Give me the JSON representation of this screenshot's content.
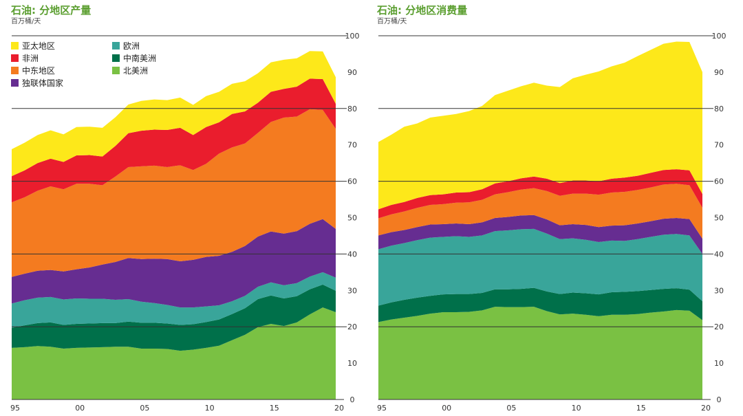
{
  "colors": {
    "asia_pacific": "#fde81a",
    "africa": "#ea1d2d",
    "middle_east": "#f47b20",
    "cis": "#662d91",
    "europe": "#39a59a",
    "south_central_america": "#00704a",
    "north_america": "#7ac143",
    "title": "#5a9e2f",
    "grid": "#333333"
  },
  "legend": [
    {
      "key": "asia_pacific",
      "label": "亚太地区"
    },
    {
      "key": "africa",
      "label": "非洲"
    },
    {
      "key": "middle_east",
      "label": "中东地区"
    },
    {
      "key": "cis",
      "label": "独联体国家"
    },
    {
      "key": "europe",
      "label": "欧洲"
    },
    {
      "key": "south_central_america",
      "label": "中南美洲"
    },
    {
      "key": "north_america",
      "label": "北美洲"
    }
  ],
  "chart_data": [
    {
      "type": "area",
      "stacked": true,
      "title": "石油: 分地区产量",
      "ylabel": "百万桶/天",
      "ylim": [
        0,
        100
      ],
      "yticks": [
        0,
        10,
        20,
        30,
        40,
        50,
        60,
        70,
        80,
        90,
        100
      ],
      "x": [
        1995,
        1996,
        1997,
        1998,
        1999,
        2000,
        2001,
        2002,
        2003,
        2004,
        2005,
        2006,
        2007,
        2008,
        2009,
        2010,
        2011,
        2012,
        2013,
        2014,
        2015,
        2016,
        2017,
        2018,
        2019,
        2020
      ],
      "xticks": [
        {
          "x": 1995,
          "label": "95"
        },
        {
          "x": 2000,
          "label": "00"
        },
        {
          "x": 2005,
          "label": "05"
        },
        {
          "x": 2010,
          "label": "10"
        },
        {
          "x": 2015,
          "label": "15"
        },
        {
          "x": 2020,
          "label": "20"
        }
      ],
      "series": [
        {
          "name": "北美洲",
          "key": "north_america",
          "values": [
            14.2,
            14.4,
            14.7,
            14.5,
            14.0,
            14.2,
            14.3,
            14.4,
            14.5,
            14.5,
            14.0,
            14.0,
            13.9,
            13.4,
            13.7,
            14.2,
            14.8,
            16.3,
            17.8,
            19.9,
            20.8,
            20.2,
            21.2,
            23.4,
            25.3,
            24.0
          ]
        },
        {
          "name": "中南美洲",
          "key": "south_central_america",
          "values": [
            5.5,
            6.0,
            6.3,
            6.7,
            6.5,
            6.6,
            6.6,
            6.6,
            6.5,
            6.9,
            7.1,
            7.1,
            7.0,
            7.1,
            7.0,
            7.1,
            7.2,
            7.2,
            7.3,
            7.7,
            7.8,
            7.6,
            7.2,
            6.9,
            6.3,
            5.9
          ]
        },
        {
          "name": "欧洲",
          "key": "europe",
          "values": [
            6.7,
            6.9,
            7.0,
            7.0,
            7.0,
            7.0,
            6.8,
            6.7,
            6.4,
            6.2,
            5.8,
            5.4,
            5.1,
            4.8,
            4.6,
            4.3,
            3.9,
            3.5,
            3.4,
            3.4,
            3.6,
            3.6,
            3.6,
            3.5,
            3.4,
            3.6
          ]
        },
        {
          "name": "独联体国家",
          "key": "cis",
          "values": [
            7.3,
            7.3,
            7.4,
            7.4,
            7.7,
            8.0,
            8.6,
            9.4,
            10.4,
            11.3,
            11.7,
            12.2,
            12.6,
            12.7,
            13.1,
            13.6,
            13.6,
            13.6,
            13.7,
            13.8,
            14.0,
            14.2,
            14.3,
            14.5,
            14.6,
            13.4
          ]
        },
        {
          "name": "中东地区",
          "key": "middle_east",
          "values": [
            20.5,
            21.0,
            22.0,
            23.0,
            22.6,
            23.5,
            23.0,
            21.8,
            23.5,
            25.0,
            25.5,
            25.6,
            25.3,
            26.4,
            24.7,
            25.6,
            28.1,
            28.7,
            28.2,
            28.5,
            30.1,
            31.9,
            31.5,
            31.5,
            30.0,
            27.5
          ]
        },
        {
          "name": "非洲",
          "key": "africa",
          "values": [
            7.2,
            7.4,
            7.6,
            7.6,
            7.5,
            7.8,
            7.9,
            7.9,
            8.4,
            9.3,
            9.8,
            9.9,
            10.2,
            10.3,
            9.6,
            10.1,
            8.6,
            9.2,
            8.8,
            8.3,
            8.3,
            7.9,
            8.2,
            8.4,
            8.5,
            6.9
          ]
        },
        {
          "name": "亚太地区",
          "key": "asia_pacific",
          "values": [
            7.4,
            7.6,
            7.7,
            7.8,
            7.6,
            7.8,
            7.8,
            7.9,
            7.9,
            7.9,
            8.2,
            8.3,
            8.2,
            8.3,
            8.3,
            8.5,
            8.4,
            8.3,
            8.3,
            8.1,
            8.1,
            8.0,
            7.8,
            7.6,
            7.6,
            7.3
          ]
        }
      ]
    },
    {
      "type": "area",
      "stacked": true,
      "title": "石油: 分地区消费量",
      "ylabel": "百万桶/天",
      "ylim": [
        0,
        100
      ],
      "yticks": [
        0,
        10,
        20,
        30,
        40,
        50,
        60,
        70,
        80,
        90,
        100
      ],
      "x": [
        1995,
        1996,
        1997,
        1998,
        1999,
        2000,
        2001,
        2002,
        2003,
        2004,
        2005,
        2006,
        2007,
        2008,
        2009,
        2010,
        2011,
        2012,
        2013,
        2014,
        2015,
        2016,
        2017,
        2018,
        2019,
        2020
      ],
      "xticks": [
        {
          "x": 1995,
          "label": "95"
        },
        {
          "x": 2000,
          "label": "00"
        },
        {
          "x": 2005,
          "label": "05"
        },
        {
          "x": 2010,
          "label": "10"
        },
        {
          "x": 2015,
          "label": "15"
        },
        {
          "x": 2020,
          "label": "20"
        }
      ],
      "series": [
        {
          "name": "北美洲",
          "key": "north_america",
          "values": [
            21.3,
            22.0,
            22.5,
            23.0,
            23.6,
            24.0,
            24.0,
            24.1,
            24.5,
            25.5,
            25.4,
            25.4,
            25.5,
            24.3,
            23.4,
            23.6,
            23.3,
            22.9,
            23.3,
            23.3,
            23.5,
            23.9,
            24.2,
            24.6,
            24.4,
            21.8
          ]
        },
        {
          "name": "中南美洲",
          "key": "south_central_america",
          "values": [
            4.5,
            4.7,
            4.9,
            5.0,
            4.9,
            4.9,
            5.0,
            4.9,
            4.8,
            4.8,
            4.9,
            5.0,
            5.2,
            5.4,
            5.6,
            5.8,
            5.9,
            6.0,
            6.2,
            6.3,
            6.3,
            6.2,
            6.2,
            6.0,
            5.8,
            5.2
          ]
        },
        {
          "name": "欧洲",
          "key": "europe",
          "values": [
            15.5,
            15.6,
            15.6,
            15.8,
            16.0,
            15.8,
            15.9,
            15.7,
            15.8,
            16.0,
            16.2,
            16.4,
            16.2,
            15.9,
            15.1,
            14.9,
            14.7,
            14.4,
            14.2,
            14.0,
            14.3,
            14.6,
            14.9,
            14.9,
            14.9,
            13.0
          ]
        },
        {
          "name": "独联体国家",
          "key": "cis",
          "values": [
            3.8,
            3.7,
            3.6,
            3.6,
            3.6,
            3.5,
            3.5,
            3.5,
            3.6,
            3.6,
            3.7,
            3.8,
            3.8,
            3.9,
            3.8,
            3.9,
            4.1,
            4.1,
            4.1,
            4.3,
            4.3,
            4.3,
            4.4,
            4.4,
            4.5,
            4.2
          ]
        },
        {
          "name": "中东地区",
          "key": "middle_east",
          "values": [
            4.7,
            4.9,
            5.1,
            5.3,
            5.4,
            5.5,
            5.7,
            6.0,
            6.2,
            6.5,
            6.8,
            7.1,
            7.4,
            7.8,
            8.1,
            8.4,
            8.6,
            8.9,
            9.1,
            9.2,
            9.2,
            9.3,
            9.4,
            9.4,
            9.3,
            8.5
          ]
        },
        {
          "name": "非洲",
          "key": "africa",
          "values": [
            2.5,
            2.6,
            2.6,
            2.7,
            2.7,
            2.7,
            2.8,
            2.8,
            2.9,
            3.0,
            3.0,
            3.1,
            3.2,
            3.4,
            3.5,
            3.6,
            3.6,
            3.7,
            3.8,
            3.9,
            3.9,
            4.0,
            4.0,
            4.0,
            4.1,
            3.8
          ]
        },
        {
          "name": "亚太地区",
          "key": "asia_pacific",
          "values": [
            18.5,
            19.3,
            20.7,
            20.5,
            21.3,
            21.6,
            21.6,
            22.3,
            22.9,
            24.3,
            24.9,
            25.3,
            25.8,
            25.6,
            26.4,
            28.1,
            29.1,
            30.2,
            30.9,
            31.6,
            32.9,
            33.8,
            34.7,
            35.1,
            35.3,
            33.5
          ]
        }
      ]
    }
  ]
}
